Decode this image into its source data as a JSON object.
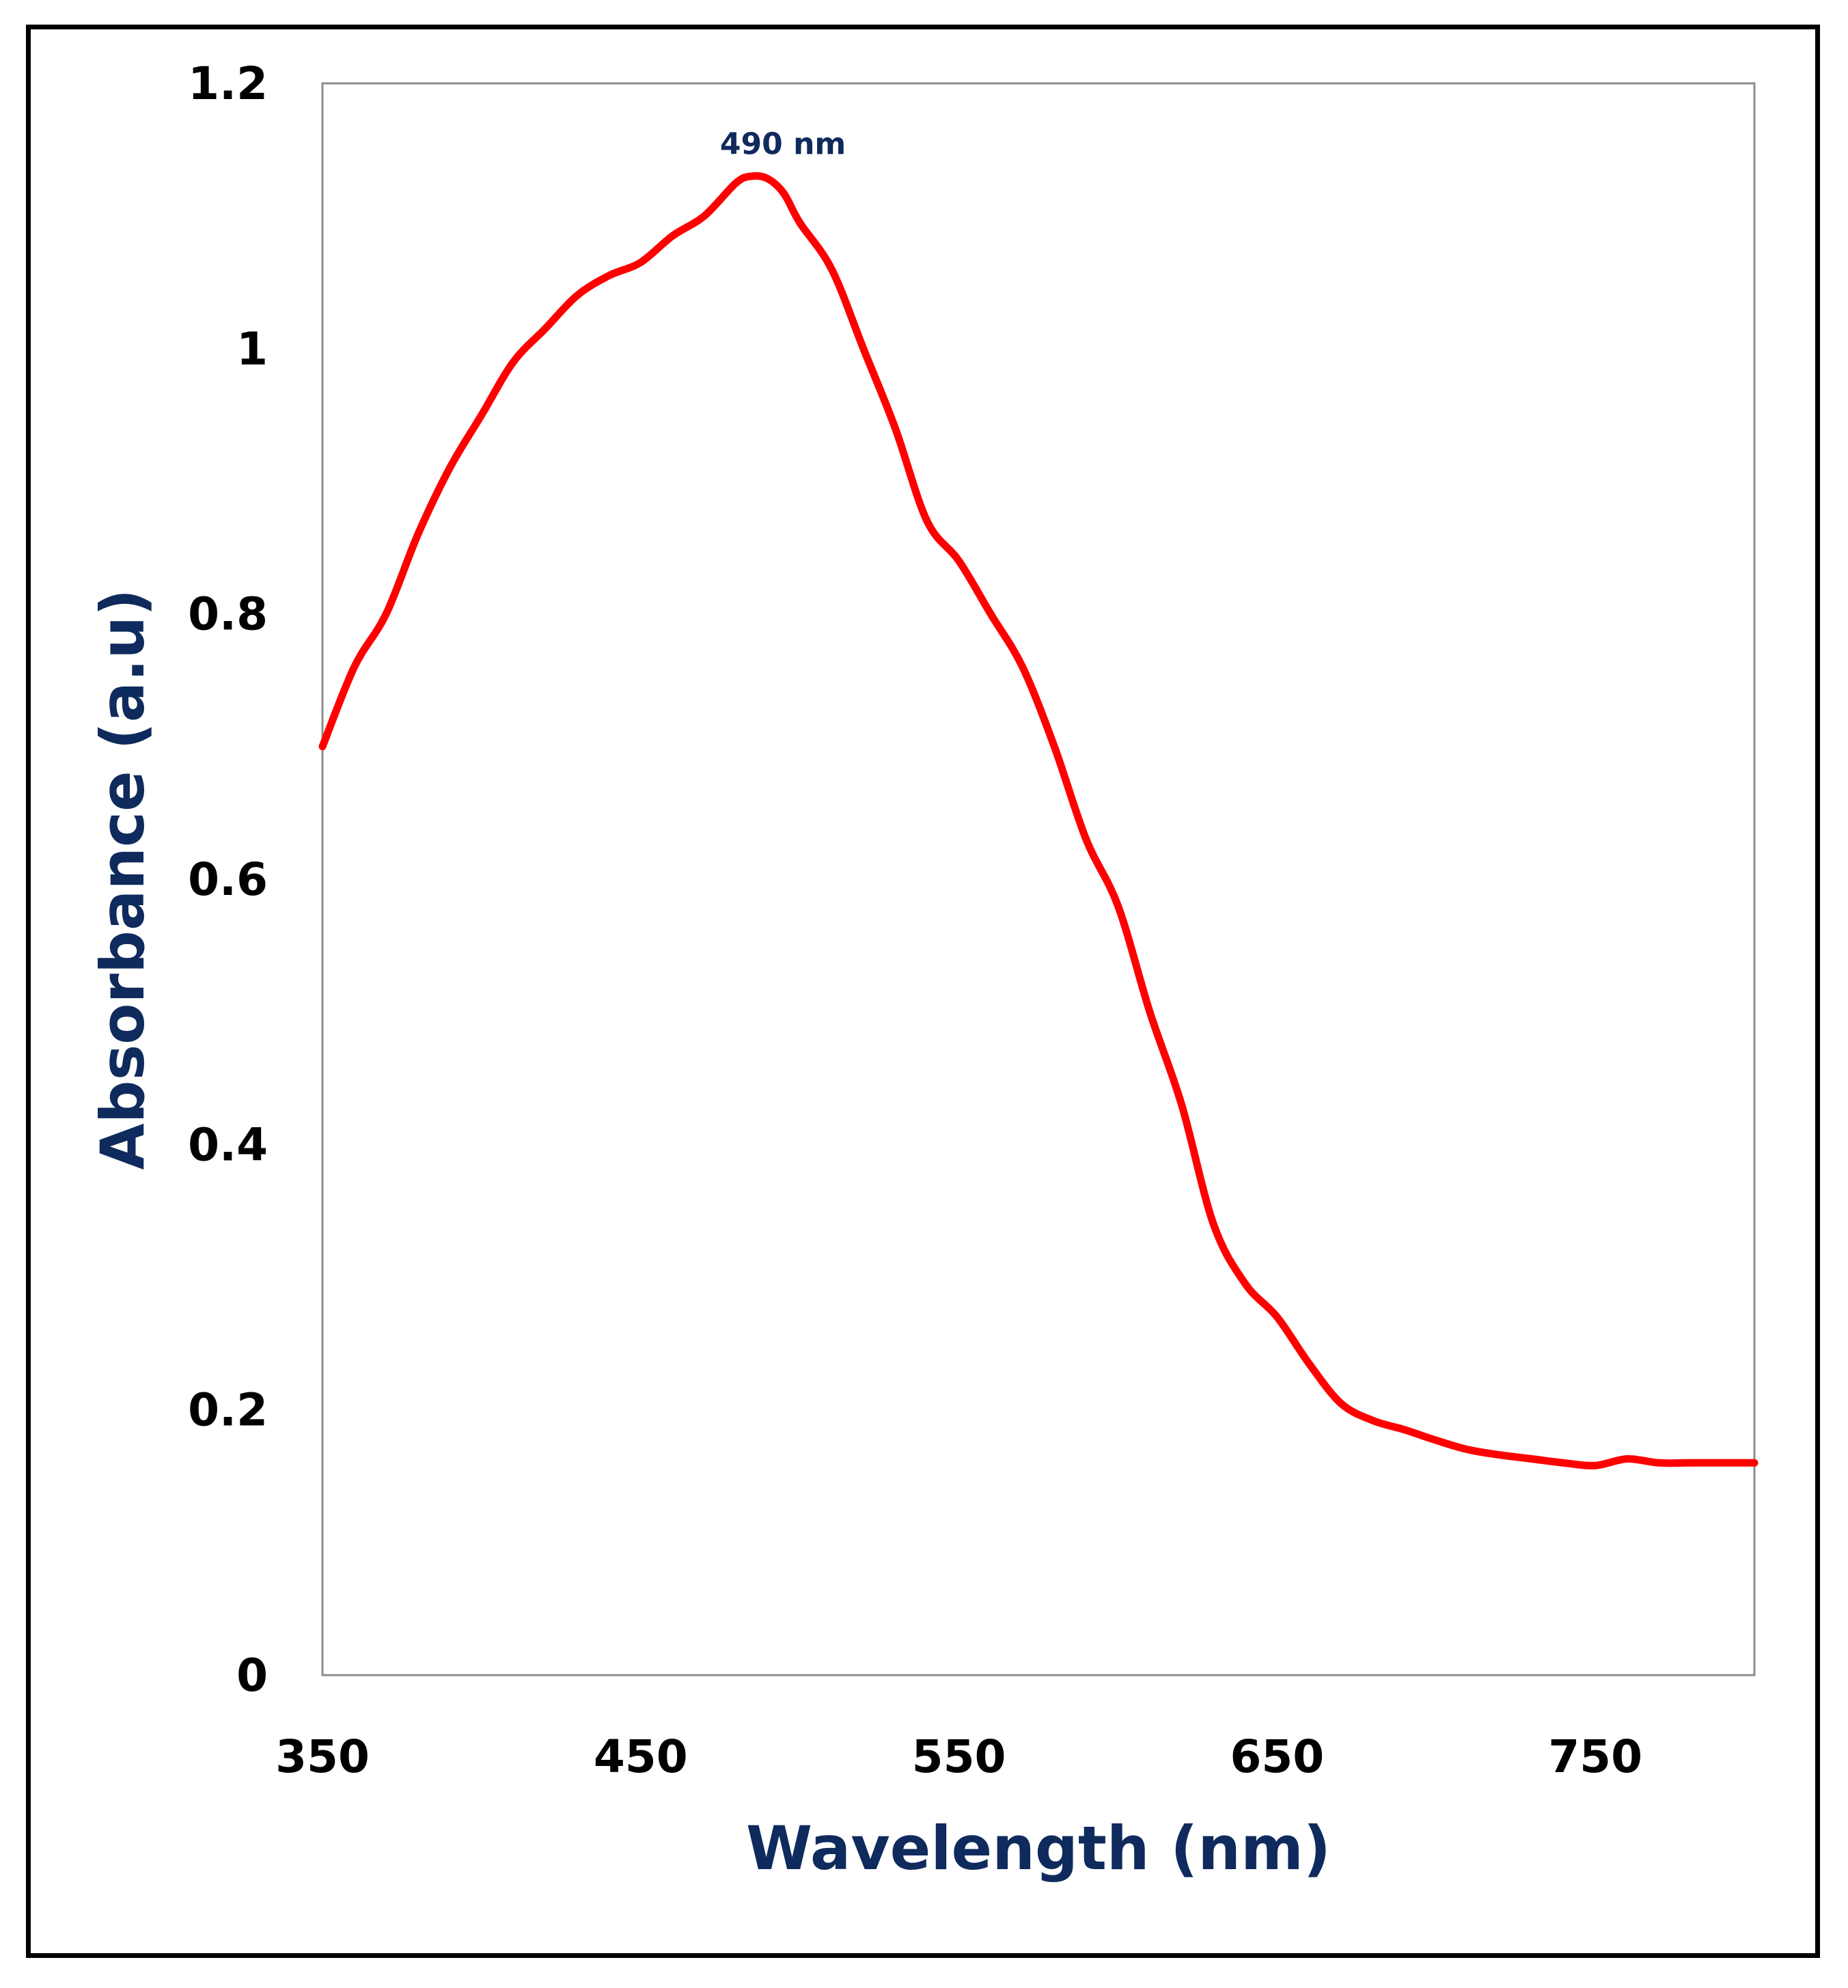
{
  "chart_data": {
    "type": "line",
    "title": "",
    "xlabel": "Wavelength (nm)",
    "ylabel": "Absorbance (a.u)",
    "xlim": [
      350,
      800
    ],
    "ylim": [
      0,
      1.2
    ],
    "xticks": [
      350,
      450,
      550,
      650,
      750
    ],
    "xtick_labels": [
      "350",
      "450",
      "550",
      "650",
      "750"
    ],
    "yticks": [
      0,
      0.2,
      0.4,
      0.6,
      0.8,
      1.0,
      1.2
    ],
    "ytick_labels": [
      "0",
      "0.2",
      "0.4",
      "0.6",
      "0.8",
      "1",
      "1.2"
    ],
    "grid": false,
    "series": [
      {
        "name": "Absorbance",
        "color": "#ff0000",
        "x": [
          350,
          360,
          370,
          380,
          390,
          400,
          410,
          420,
          430,
          440,
          450,
          460,
          470,
          480,
          485,
          490,
          495,
          500,
          510,
          520,
          530,
          540,
          550,
          560,
          570,
          580,
          590,
          600,
          610,
          620,
          630,
          640,
          650,
          660,
          670,
          680,
          690,
          700,
          710,
          720,
          730,
          740,
          750,
          760,
          770,
          780,
          790,
          800
        ],
        "y": [
          0.7,
          0.76,
          0.8,
          0.86,
          0.91,
          0.95,
          0.99,
          1.015,
          1.04,
          1.055,
          1.065,
          1.085,
          1.1,
          1.125,
          1.13,
          1.128,
          1.117,
          1.095,
          1.06,
          1.0,
          0.94,
          0.87,
          0.84,
          0.8,
          0.76,
          0.7,
          0.63,
          0.58,
          0.5,
          0.43,
          0.34,
          0.295,
          0.27,
          0.235,
          0.205,
          0.192,
          0.185,
          0.177,
          0.17,
          0.166,
          0.163,
          0.16,
          0.158,
          0.163,
          0.16,
          0.16,
          0.16,
          0.16
        ]
      }
    ],
    "annotations": [
      {
        "text": "490 nm",
        "x": 490,
        "y": 1.155
      }
    ]
  }
}
